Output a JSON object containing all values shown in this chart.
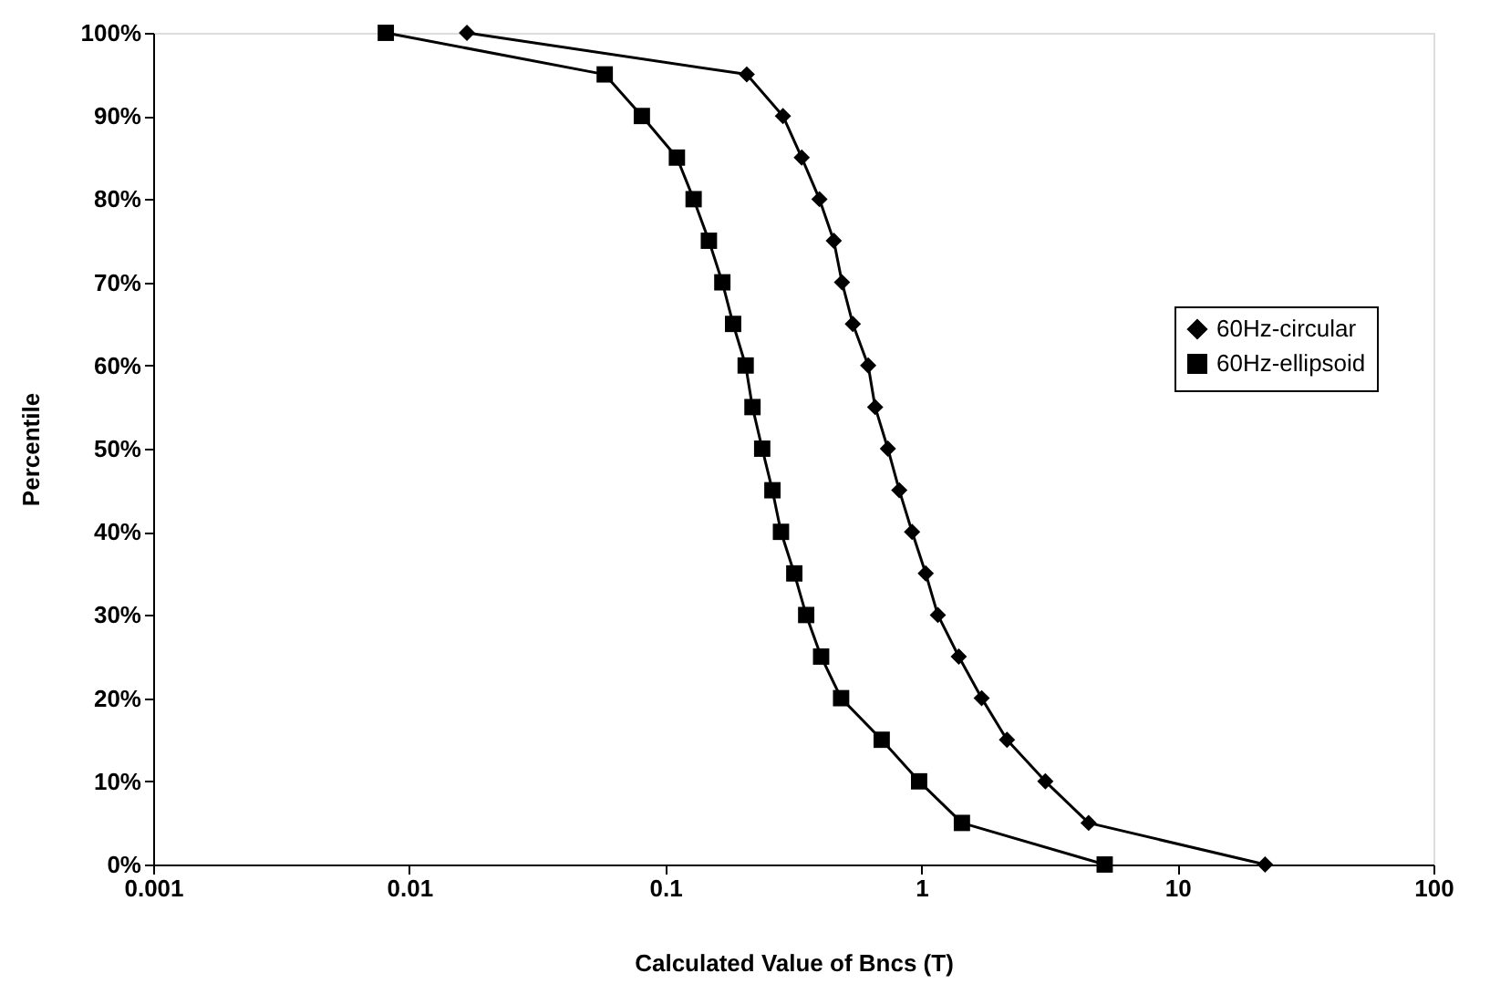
{
  "chart_data": {
    "type": "line",
    "xlabel": "Calculated Value of Bncs (T)",
    "ylabel": "Percentile",
    "log": "x",
    "xlim": [
      0.001,
      100
    ],
    "xticks": [
      0.001,
      0.01,
      0.1,
      1,
      10,
      100
    ],
    "ylim": [
      0,
      100
    ],
    "yticks": [
      {
        "value": 0,
        "label": "0%"
      },
      {
        "value": 10,
        "label": "10%"
      },
      {
        "value": 20,
        "label": "20%"
      },
      {
        "value": 30,
        "label": "30%"
      },
      {
        "value": 40,
        "label": "40%"
      },
      {
        "value": 50,
        "label": "50%"
      },
      {
        "value": 60,
        "label": "60%"
      },
      {
        "value": 70,
        "label": "70%"
      },
      {
        "value": 80,
        "label": "80%"
      },
      {
        "value": 90,
        "label": "90%"
      },
      {
        "value": 100,
        "label": "100%"
      }
    ],
    "grid": false,
    "legend": "right",
    "line_style": "solid",
    "series": [
      {
        "name": "60Hz-circular",
        "color": "#000000",
        "marker": "diamond",
        "x": [
          0.0168,
          0.208,
          0.288,
          0.341,
          0.4,
          0.455,
          0.49,
          0.54,
          0.62,
          0.66,
          0.74,
          0.82,
          0.92,
          1.04,
          1.16,
          1.4,
          1.72,
          2.16,
          3.05,
          4.5,
          22
        ],
        "values": [
          100,
          95,
          90,
          85,
          80,
          75,
          70,
          65,
          60,
          55,
          50,
          45,
          40,
          35,
          30,
          25,
          20,
          15,
          10,
          5,
          0
        ]
      },
      {
        "name": "60Hz-ellipsoid",
        "color": "#000000",
        "marker": "square",
        "x": [
          0.0081,
          0.058,
          0.081,
          0.111,
          0.129,
          0.148,
          0.167,
          0.184,
          0.206,
          0.219,
          0.239,
          0.262,
          0.283,
          0.319,
          0.355,
          0.406,
          0.486,
          0.7,
          0.98,
          1.44,
          5.2
        ],
        "values": [
          100,
          95,
          90,
          85,
          80,
          75,
          70,
          65,
          60,
          55,
          50,
          45,
          40,
          35,
          30,
          25,
          20,
          15,
          10,
          5,
          0
        ]
      }
    ]
  }
}
